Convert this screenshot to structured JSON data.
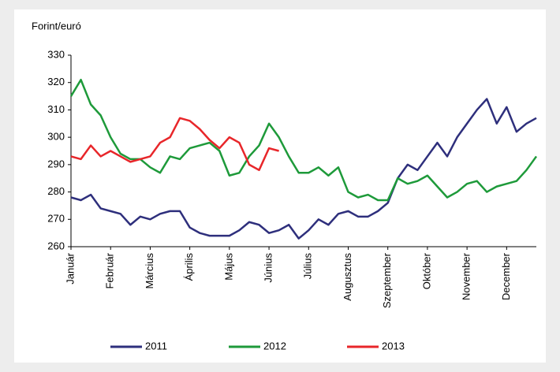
{
  "chart_data": {
    "type": "line",
    "y_label": "Forint/euró",
    "categories": [
      "Január",
      null,
      null,
      null,
      "Február",
      null,
      null,
      null,
      "Március",
      null,
      null,
      null,
      "Április",
      null,
      null,
      null,
      "Május",
      null,
      null,
      null,
      "Június",
      null,
      null,
      null,
      "Július",
      null,
      null,
      null,
      "Augusztus",
      null,
      null,
      null,
      "Szeptember",
      null,
      null,
      null,
      "Október",
      null,
      null,
      null,
      "November",
      null,
      null,
      null,
      "December",
      null,
      null,
      null
    ],
    "series": [
      {
        "name": "2011",
        "color": "#2e2f7c",
        "values": [
          278,
          277,
          279,
          274,
          273,
          272,
          268,
          271,
          270,
          272,
          273,
          273,
          267,
          265,
          264,
          264,
          264,
          266,
          269,
          268,
          265,
          266,
          268,
          263,
          266,
          270,
          268,
          272,
          273,
          271,
          271,
          273,
          276,
          285,
          290,
          288,
          293,
          298,
          293,
          300,
          305,
          310,
          314,
          305,
          311,
          302,
          305,
          307
        ]
      },
      {
        "name": "2012",
        "color": "#1e9a3a",
        "values": [
          315,
          321,
          312,
          308,
          300,
          294,
          292,
          292,
          289,
          287,
          293,
          292,
          296,
          297,
          298,
          295,
          286,
          287,
          293,
          297,
          305,
          300,
          293,
          287,
          287,
          289,
          286,
          289,
          280,
          278,
          279,
          277,
          277,
          285,
          283,
          284,
          286,
          282,
          278,
          280,
          283,
          284,
          280,
          282,
          283,
          284,
          288,
          293
        ]
      },
      {
        "name": "2013",
        "color": "#e8262a",
        "values": [
          293,
          292,
          297,
          293,
          295,
          293,
          291,
          292,
          293,
          298,
          300,
          307,
          306,
          303,
          299,
          296,
          300,
          298,
          290,
          288,
          296,
          295,
          null,
          null,
          null,
          null,
          null,
          null,
          null,
          null,
          null,
          null,
          null,
          null,
          null,
          null,
          null,
          null,
          null,
          null,
          null,
          null,
          null,
          null,
          null,
          null,
          null,
          null
        ]
      }
    ],
    "ylim": [
      260,
      330
    ],
    "yticks": [
      260,
      270,
      280,
      290,
      300,
      310,
      320,
      330
    ],
    "grid": false,
    "legend": "bottom"
  }
}
